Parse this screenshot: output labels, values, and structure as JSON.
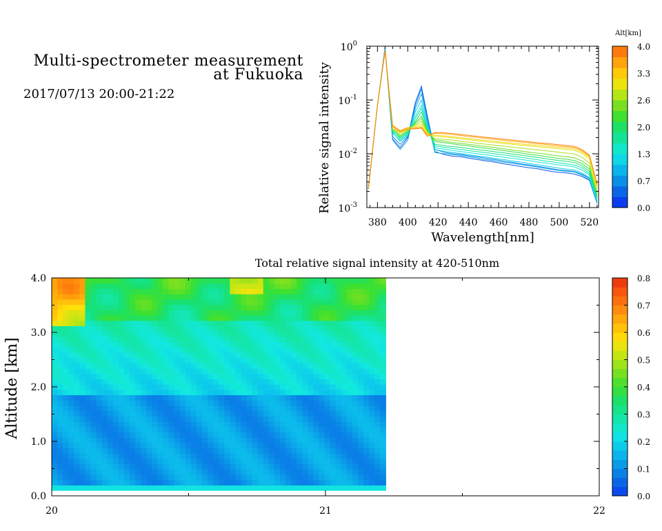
{
  "header": {
    "title_line1": "Multi-spectrometer measurement",
    "title_line2": "at Fukuoka",
    "timestamp": "2017/07/13 20:00-21:22"
  },
  "colors": {
    "scale": [
      "#0b3cf0",
      "#0a6ce6",
      "#0a9ae8",
      "#0cc4ec",
      "#12e8e0",
      "#14e6a8",
      "#18e070",
      "#3ce030",
      "#7ee020",
      "#c4e614",
      "#ffe20a",
      "#ffb80a",
      "#ff8a0c",
      "#fa5a0e",
      "#e8300e"
    ]
  },
  "chart_data": [
    {
      "type": "line",
      "ylabel": "Relative signal intensity",
      "xlabel": "Wavelength[nm]",
      "xlim": [
        373,
        526
      ],
      "ylim": [
        0.001,
        1
      ],
      "y_scale": "log",
      "x_ticks": [
        "380",
        "400",
        "420",
        "440",
        "460",
        "480",
        "500",
        "520"
      ],
      "y_ticks": [
        "10",
        "10",
        "10",
        "10"
      ],
      "y_tick_exponents": [
        "-3",
        "-2",
        "-1",
        "0"
      ],
      "x": [
        374,
        380,
        385,
        390,
        395,
        400,
        405,
        409,
        413,
        418,
        425,
        430,
        435,
        440,
        445,
        450,
        455,
        460,
        465,
        470,
        475,
        480,
        485,
        490,
        495,
        500,
        505,
        510,
        515,
        520,
        525
      ],
      "series": [
        {
          "alt": 0.1,
          "values": [
            0.0022,
            0.08,
            0.95,
            0.019,
            0.013,
            0.02,
            0.09,
            0.18,
            0.05,
            0.011,
            0.0095,
            0.009,
            0.0088,
            0.0083,
            0.0079,
            0.0075,
            0.0072,
            0.0068,
            0.0064,
            0.0061,
            0.0058,
            0.0055,
            0.0053,
            0.005,
            0.0047,
            0.0045,
            0.0044,
            0.0042,
            0.0038,
            0.0032,
            0.0012
          ]
        },
        {
          "alt": 0.4,
          "values": [
            0.0023,
            0.08,
            0.92,
            0.021,
            0.015,
            0.021,
            0.08,
            0.16,
            0.045,
            0.012,
            0.0105,
            0.01,
            0.0097,
            0.0092,
            0.0088,
            0.0084,
            0.008,
            0.0076,
            0.0072,
            0.0069,
            0.0065,
            0.0062,
            0.0059,
            0.0056,
            0.0053,
            0.005,
            0.0049,
            0.0047,
            0.0042,
            0.0035,
            0.0013
          ]
        },
        {
          "alt": 0.7,
          "values": [
            0.0022,
            0.08,
            0.9,
            0.018,
            0.012,
            0.018,
            0.07,
            0.13,
            0.04,
            0.0105,
            0.01,
            0.0096,
            0.0093,
            0.0088,
            0.0084,
            0.0079,
            0.0076,
            0.0072,
            0.0069,
            0.0066,
            0.0063,
            0.006,
            0.0057,
            0.0054,
            0.0051,
            0.0049,
            0.0047,
            0.0046,
            0.004,
            0.0033,
            0.0012
          ]
        },
        {
          "alt": 1.0,
          "values": [
            0.0022,
            0.08,
            0.88,
            0.025,
            0.017,
            0.022,
            0.06,
            0.1,
            0.035,
            0.012,
            0.011,
            0.0105,
            0.0101,
            0.0096,
            0.0092,
            0.0088,
            0.0084,
            0.008,
            0.0077,
            0.0073,
            0.007,
            0.0066,
            0.0063,
            0.006,
            0.0057,
            0.0054,
            0.0052,
            0.005,
            0.0044,
            0.0036,
            0.0013
          ]
        },
        {
          "alt": 1.3,
          "values": [
            0.0022,
            0.08,
            0.86,
            0.027,
            0.019,
            0.024,
            0.05,
            0.08,
            0.032,
            0.013,
            0.012,
            0.0115,
            0.011,
            0.0105,
            0.0101,
            0.0097,
            0.0093,
            0.0089,
            0.0085,
            0.0082,
            0.0078,
            0.0075,
            0.0071,
            0.0068,
            0.0065,
            0.0062,
            0.006,
            0.0057,
            0.005,
            0.004,
            0.0014
          ]
        },
        {
          "alt": 1.6,
          "values": [
            0.0022,
            0.08,
            0.85,
            0.024,
            0.018,
            0.023,
            0.045,
            0.07,
            0.03,
            0.014,
            0.013,
            0.0125,
            0.012,
            0.0115,
            0.011,
            0.0106,
            0.0102,
            0.0098,
            0.0094,
            0.009,
            0.0086,
            0.0082,
            0.0078,
            0.0074,
            0.0071,
            0.0068,
            0.0065,
            0.0062,
            0.0055,
            0.0043,
            0.0015
          ]
        },
        {
          "alt": 1.9,
          "values": [
            0.0023,
            0.08,
            0.84,
            0.026,
            0.02,
            0.025,
            0.04,
            0.06,
            0.028,
            0.015,
            0.014,
            0.0135,
            0.0131,
            0.0125,
            0.012,
            0.0116,
            0.0112,
            0.0107,
            0.0103,
            0.0098,
            0.0094,
            0.009,
            0.0086,
            0.0082,
            0.0078,
            0.0075,
            0.0072,
            0.0069,
            0.006,
            0.0047,
            0.0016
          ]
        },
        {
          "alt": 2.2,
          "values": [
            0.0023,
            0.08,
            0.83,
            0.03,
            0.022,
            0.027,
            0.038,
            0.05,
            0.027,
            0.017,
            0.016,
            0.0152,
            0.0146,
            0.014,
            0.0134,
            0.0128,
            0.0123,
            0.0118,
            0.0113,
            0.0108,
            0.0103,
            0.0098,
            0.0094,
            0.009,
            0.0086,
            0.0082,
            0.0079,
            0.0075,
            0.0066,
            0.0052,
            0.0017
          ]
        },
        {
          "alt": 2.5,
          "values": [
            0.0023,
            0.08,
            0.82,
            0.028,
            0.021,
            0.026,
            0.036,
            0.045,
            0.026,
            0.018,
            0.017,
            0.0162,
            0.0156,
            0.015,
            0.0144,
            0.0138,
            0.0133,
            0.0127,
            0.0122,
            0.0117,
            0.0112,
            0.0107,
            0.0103,
            0.0099,
            0.0095,
            0.0091,
            0.0088,
            0.0084,
            0.0074,
            0.0058,
            0.0018
          ]
        },
        {
          "alt": 2.8,
          "values": [
            0.0023,
            0.08,
            0.82,
            0.03,
            0.024,
            0.028,
            0.034,
            0.04,
            0.025,
            0.019,
            0.0185,
            0.018,
            0.0172,
            0.0165,
            0.0158,
            0.0152,
            0.0147,
            0.0142,
            0.0137,
            0.0132,
            0.0127,
            0.0123,
            0.0119,
            0.0115,
            0.0111,
            0.0107,
            0.0103,
            0.0099,
            0.0087,
            0.0068,
            0.002
          ]
        },
        {
          "alt": 3.1,
          "values": [
            0.0023,
            0.08,
            0.82,
            0.033,
            0.026,
            0.03,
            0.033,
            0.036,
            0.024,
            0.021,
            0.0205,
            0.0198,
            0.019,
            0.0183,
            0.0176,
            0.017,
            0.0164,
            0.0159,
            0.0154,
            0.0149,
            0.0144,
            0.014,
            0.0136,
            0.0132,
            0.0128,
            0.0124,
            0.012,
            0.0116,
            0.0102,
            0.008,
            0.0023
          ]
        },
        {
          "alt": 3.4,
          "values": [
            0.0023,
            0.08,
            0.82,
            0.03,
            0.025,
            0.028,
            0.031,
            0.033,
            0.023,
            0.022,
            0.0215,
            0.0207,
            0.0199,
            0.0192,
            0.0185,
            0.0179,
            0.0173,
            0.0167,
            0.0162,
            0.0157,
            0.0152,
            0.0148,
            0.0144,
            0.014,
            0.0136,
            0.0132,
            0.0128,
            0.0124,
            0.0109,
            0.0086,
            0.0025
          ]
        },
        {
          "alt": 3.7,
          "values": [
            0.0023,
            0.08,
            0.82,
            0.034,
            0.027,
            0.031,
            0.03,
            0.031,
            0.022,
            0.024,
            0.0235,
            0.0227,
            0.0218,
            0.021,
            0.0203,
            0.0196,
            0.0189,
            0.0182,
            0.0176,
            0.017,
            0.0165,
            0.016,
            0.0155,
            0.015,
            0.0145,
            0.014,
            0.0135,
            0.0131,
            0.0115,
            0.009,
            0.0027
          ]
        },
        {
          "alt": 4.0,
          "values": [
            0.0023,
            0.08,
            0.82,
            0.032,
            0.026,
            0.029,
            0.029,
            0.03,
            0.021,
            0.025,
            0.0245,
            0.0237,
            0.0228,
            0.022,
            0.0212,
            0.0205,
            0.0198,
            0.0191,
            0.0185,
            0.0179,
            0.0173,
            0.0167,
            0.0162,
            0.0157,
            0.0152,
            0.0147,
            0.0142,
            0.0137,
            0.012,
            0.0094,
            0.0028
          ]
        }
      ],
      "colorbar": {
        "label": "Alt[km]",
        "ticks": [
          "4.0",
          "3.3",
          "2.6",
          "2.0",
          "1.3",
          "0.7",
          "0.0"
        ],
        "range": [
          0,
          4
        ]
      }
    },
    {
      "type": "heatmap",
      "title": "Total relative signal intensity at 420-510nm",
      "ylabel": "Altitude [km]",
      "xlim": [
        20,
        22
      ],
      "ylim": [
        0,
        4
      ],
      "x_ticks": [
        "20",
        "21",
        "22"
      ],
      "y_ticks": [
        "0.0",
        "1.0",
        "2.0",
        "3.0",
        "4.0"
      ],
      "data_time_range": [
        20.0,
        21.22
      ],
      "data_alt_range": [
        0.1,
        4.0
      ],
      "value_range": [
        0,
        0.8
      ],
      "colorbar": {
        "ticks": [
          "0.0",
          "0.1",
          "0.2",
          "0.3",
          "0.4",
          "0.5",
          "0.6",
          "0.7",
          "0.8"
        ],
        "range": [
          0,
          0.8
        ]
      }
    }
  ]
}
